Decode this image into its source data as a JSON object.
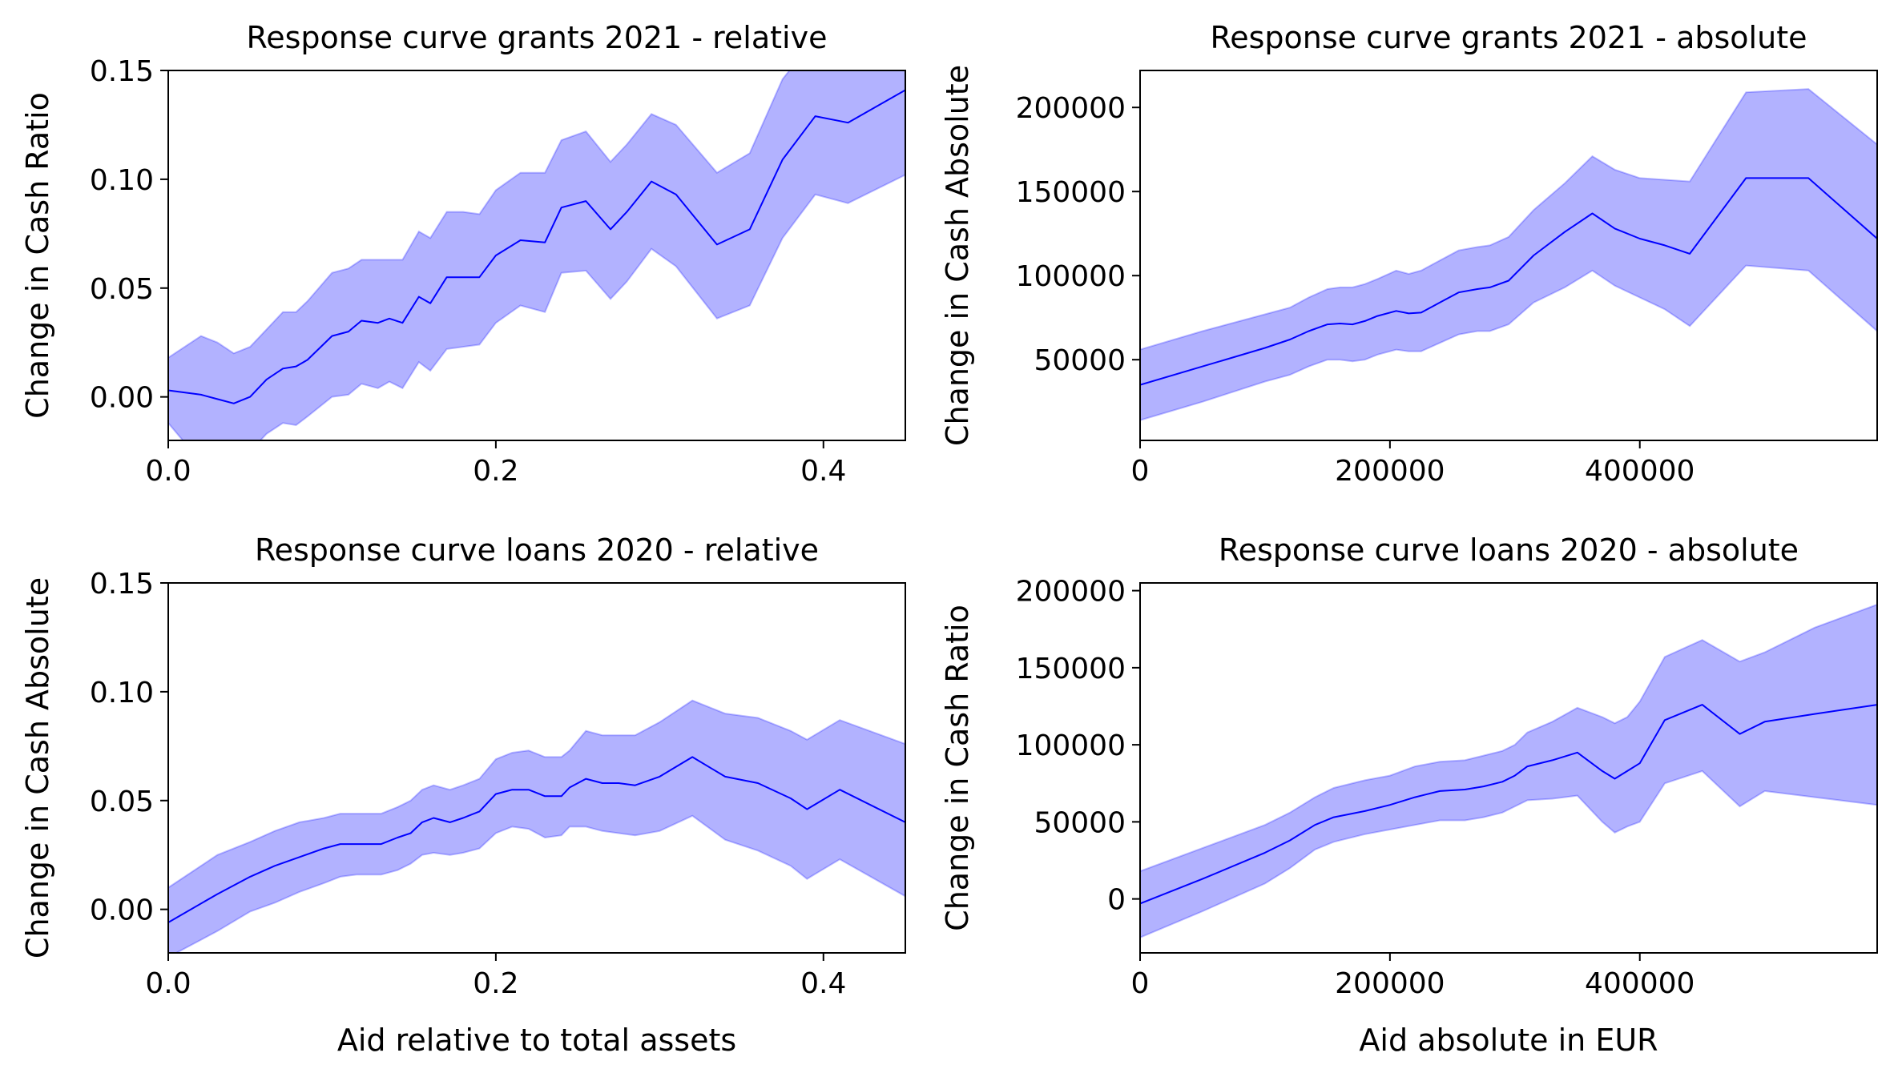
{
  "colors": {
    "line": "#0000ff",
    "band_fill": "#0000ff",
    "band_fill_opacity": 0.3,
    "axes": "#000000"
  },
  "chart_data": [
    {
      "id": "grants-relative",
      "type": "line",
      "title": "Response curve grants 2021 - relative",
      "xlabel": "",
      "ylabel": "Change in Cash Ratio",
      "xlim": [
        0,
        0.45
      ],
      "ylim": [
        -0.02,
        0.15
      ],
      "xticks": [
        0.0,
        0.2,
        0.4
      ],
      "xtick_labels": [
        "0.0",
        "0.2",
        "0.4"
      ],
      "yticks": [
        0.0,
        0.05,
        0.1,
        0.15
      ],
      "ytick_labels": [
        "0.00",
        "0.05",
        "0.10",
        "0.15"
      ],
      "grid": false,
      "x": [
        0.0,
        0.02,
        0.03,
        0.04,
        0.05,
        0.06,
        0.07,
        0.078,
        0.085,
        0.1,
        0.11,
        0.118,
        0.128,
        0.135,
        0.143,
        0.153,
        0.16,
        0.17,
        0.18,
        0.19,
        0.2,
        0.215,
        0.23,
        0.24,
        0.255,
        0.27,
        0.28,
        0.295,
        0.31,
        0.335,
        0.355,
        0.375,
        0.395,
        0.415,
        0.45
      ],
      "y": [
        0.003,
        0.001,
        -0.001,
        -0.003,
        0.0,
        0.008,
        0.013,
        0.014,
        0.017,
        0.028,
        0.03,
        0.035,
        0.034,
        0.036,
        0.034,
        0.046,
        0.043,
        0.055,
        0.055,
        0.055,
        0.065,
        0.072,
        0.071,
        0.087,
        0.09,
        0.077,
        0.085,
        0.099,
        0.093,
        0.07,
        0.077,
        0.109,
        0.129,
        0.126,
        0.141
      ],
      "lower": [
        -0.012,
        -0.03,
        -0.03,
        -0.03,
        -0.025,
        -0.017,
        -0.012,
        -0.013,
        -0.009,
        0.0,
        0.001,
        0.006,
        0.004,
        0.007,
        0.004,
        0.016,
        0.012,
        0.022,
        0.023,
        0.024,
        0.034,
        0.042,
        0.039,
        0.057,
        0.058,
        0.045,
        0.053,
        0.068,
        0.06,
        0.036,
        0.042,
        0.073,
        0.093,
        0.089,
        0.102
      ],
      "upper": [
        0.018,
        0.028,
        0.025,
        0.02,
        0.023,
        0.031,
        0.039,
        0.039,
        0.044,
        0.057,
        0.059,
        0.063,
        0.063,
        0.063,
        0.063,
        0.076,
        0.073,
        0.085,
        0.085,
        0.084,
        0.095,
        0.103,
        0.103,
        0.118,
        0.122,
        0.108,
        0.116,
        0.13,
        0.125,
        0.103,
        0.112,
        0.146,
        0.165,
        0.163,
        0.18
      ]
    },
    {
      "id": "grants-absolute",
      "type": "line",
      "title": "Response curve grants 2021 - absolute",
      "xlabel": "",
      "ylabel": "Change in Cash Absolute",
      "xlim": [
        0,
        590000
      ],
      "ylim": [
        2000,
        222000
      ],
      "xticks": [
        0,
        200000,
        400000
      ],
      "xtick_labels": [
        "0",
        "200000",
        "400000"
      ],
      "yticks": [
        50000,
        100000,
        150000,
        200000
      ],
      "ytick_labels": [
        "50000",
        "100000",
        "150000",
        "200000"
      ],
      "grid": false,
      "x": [
        0,
        50000,
        100000,
        120000,
        135000,
        150000,
        160000,
        170000,
        180000,
        190000,
        205000,
        215000,
        225000,
        240000,
        255000,
        270000,
        280000,
        295000,
        315000,
        340000,
        362000,
        380000,
        400000,
        420000,
        440000,
        485000,
        535000,
        590000
      ],
      "y": [
        35000,
        46000,
        57000,
        62000,
        67000,
        71000,
        71500,
        71000,
        73000,
        76000,
        79000,
        77500,
        78000,
        84000,
        90000,
        92000,
        93000,
        97000,
        112000,
        126000,
        137000,
        128000,
        122000,
        118000,
        113000,
        158000,
        158000,
        122000
      ],
      "lower": [
        14000,
        25000,
        37000,
        41000,
        46000,
        50000,
        50000,
        49000,
        50000,
        53000,
        56000,
        55000,
        55000,
        60000,
        65000,
        67000,
        67000,
        71000,
        84000,
        93000,
        103000,
        94000,
        87000,
        80000,
        70000,
        106000,
        103000,
        67000
      ],
      "upper": [
        56000,
        67000,
        77000,
        81000,
        87000,
        92000,
        93000,
        93000,
        95000,
        98000,
        103000,
        101000,
        103000,
        109000,
        115000,
        117000,
        118000,
        123000,
        139000,
        155000,
        171000,
        163000,
        158000,
        157000,
        156000,
        209000,
        211000,
        178000
      ]
    },
    {
      "id": "loans-relative",
      "type": "line",
      "title": "Response curve loans 2020 - relative",
      "xlabel": "Aid relative to total assets",
      "ylabel": "Change in Cash Absolute",
      "xlim": [
        0,
        0.45
      ],
      "ylim": [
        -0.02,
        0.15
      ],
      "xticks": [
        0.0,
        0.2,
        0.4
      ],
      "xtick_labels": [
        "0.0",
        "0.2",
        "0.4"
      ],
      "yticks": [
        0.0,
        0.05,
        0.1,
        0.15
      ],
      "ytick_labels": [
        "0.00",
        "0.05",
        "0.10",
        "0.15"
      ],
      "grid": false,
      "x": [
        0.0,
        0.03,
        0.05,
        0.065,
        0.08,
        0.095,
        0.105,
        0.115,
        0.13,
        0.14,
        0.148,
        0.155,
        0.162,
        0.172,
        0.18,
        0.19,
        0.2,
        0.21,
        0.22,
        0.23,
        0.24,
        0.245,
        0.255,
        0.265,
        0.275,
        0.285,
        0.3,
        0.32,
        0.34,
        0.36,
        0.38,
        0.39,
        0.41,
        0.45
      ],
      "y": [
        -0.006,
        0.007,
        0.015,
        0.02,
        0.024,
        0.028,
        0.03,
        0.03,
        0.03,
        0.033,
        0.035,
        0.04,
        0.042,
        0.04,
        0.042,
        0.045,
        0.053,
        0.055,
        0.055,
        0.052,
        0.052,
        0.056,
        0.06,
        0.058,
        0.058,
        0.057,
        0.061,
        0.07,
        0.061,
        0.058,
        0.051,
        0.046,
        0.055,
        0.04
      ],
      "lower": [
        -0.022,
        -0.01,
        -0.001,
        0.003,
        0.008,
        0.012,
        0.015,
        0.016,
        0.016,
        0.018,
        0.021,
        0.025,
        0.026,
        0.025,
        0.026,
        0.028,
        0.035,
        0.038,
        0.037,
        0.033,
        0.034,
        0.038,
        0.038,
        0.036,
        0.035,
        0.034,
        0.036,
        0.043,
        0.032,
        0.027,
        0.02,
        0.014,
        0.023,
        0.006
      ],
      "upper": [
        0.01,
        0.025,
        0.031,
        0.036,
        0.04,
        0.042,
        0.044,
        0.044,
        0.044,
        0.047,
        0.05,
        0.055,
        0.057,
        0.055,
        0.057,
        0.06,
        0.069,
        0.072,
        0.073,
        0.07,
        0.07,
        0.073,
        0.082,
        0.08,
        0.08,
        0.08,
        0.086,
        0.096,
        0.09,
        0.088,
        0.082,
        0.078,
        0.087,
        0.076
      ]
    },
    {
      "id": "loans-absolute",
      "type": "line",
      "title": "Response curve loans 2020 - absolute",
      "xlabel": "Aid absolute in EUR",
      "ylabel": "Change in Cash Ratio",
      "xlim": [
        0,
        590000
      ],
      "ylim": [
        -35000,
        205000
      ],
      "xticks": [
        0,
        200000,
        400000
      ],
      "xtick_labels": [
        "0",
        "200000",
        "400000"
      ],
      "yticks": [
        0,
        50000,
        100000,
        150000,
        200000
      ],
      "ytick_labels": [
        "0",
        "50000",
        "100000",
        "150000",
        "200000"
      ],
      "grid": false,
      "x": [
        0,
        50000,
        100000,
        120000,
        140000,
        155000,
        180000,
        200000,
        220000,
        240000,
        260000,
        275000,
        290000,
        300000,
        310000,
        330000,
        350000,
        370000,
        380000,
        390000,
        400000,
        420000,
        450000,
        480000,
        500000,
        540000,
        590000
      ],
      "y": [
        -3000,
        13000,
        30000,
        38000,
        48000,
        53000,
        57000,
        61000,
        66000,
        70000,
        71000,
        73000,
        76000,
        80000,
        86000,
        90000,
        95000,
        83000,
        78000,
        83000,
        88000,
        116000,
        126000,
        107000,
        115000,
        120000,
        126000
      ],
      "lower": [
        -25000,
        -8000,
        10000,
        20000,
        32000,
        37000,
        42000,
        45000,
        48000,
        51000,
        51000,
        53000,
        56000,
        60000,
        64000,
        65000,
        67000,
        50000,
        43000,
        47000,
        50000,
        75000,
        83000,
        60000,
        70000,
        66000,
        61000
      ],
      "upper": [
        18000,
        33000,
        48000,
        56000,
        66000,
        72000,
        77000,
        80000,
        86000,
        89000,
        90000,
        93000,
        96000,
        100000,
        108000,
        115000,
        124000,
        118000,
        114000,
        118000,
        128000,
        157000,
        168000,
        154000,
        160000,
        176000,
        191000
      ]
    }
  ]
}
